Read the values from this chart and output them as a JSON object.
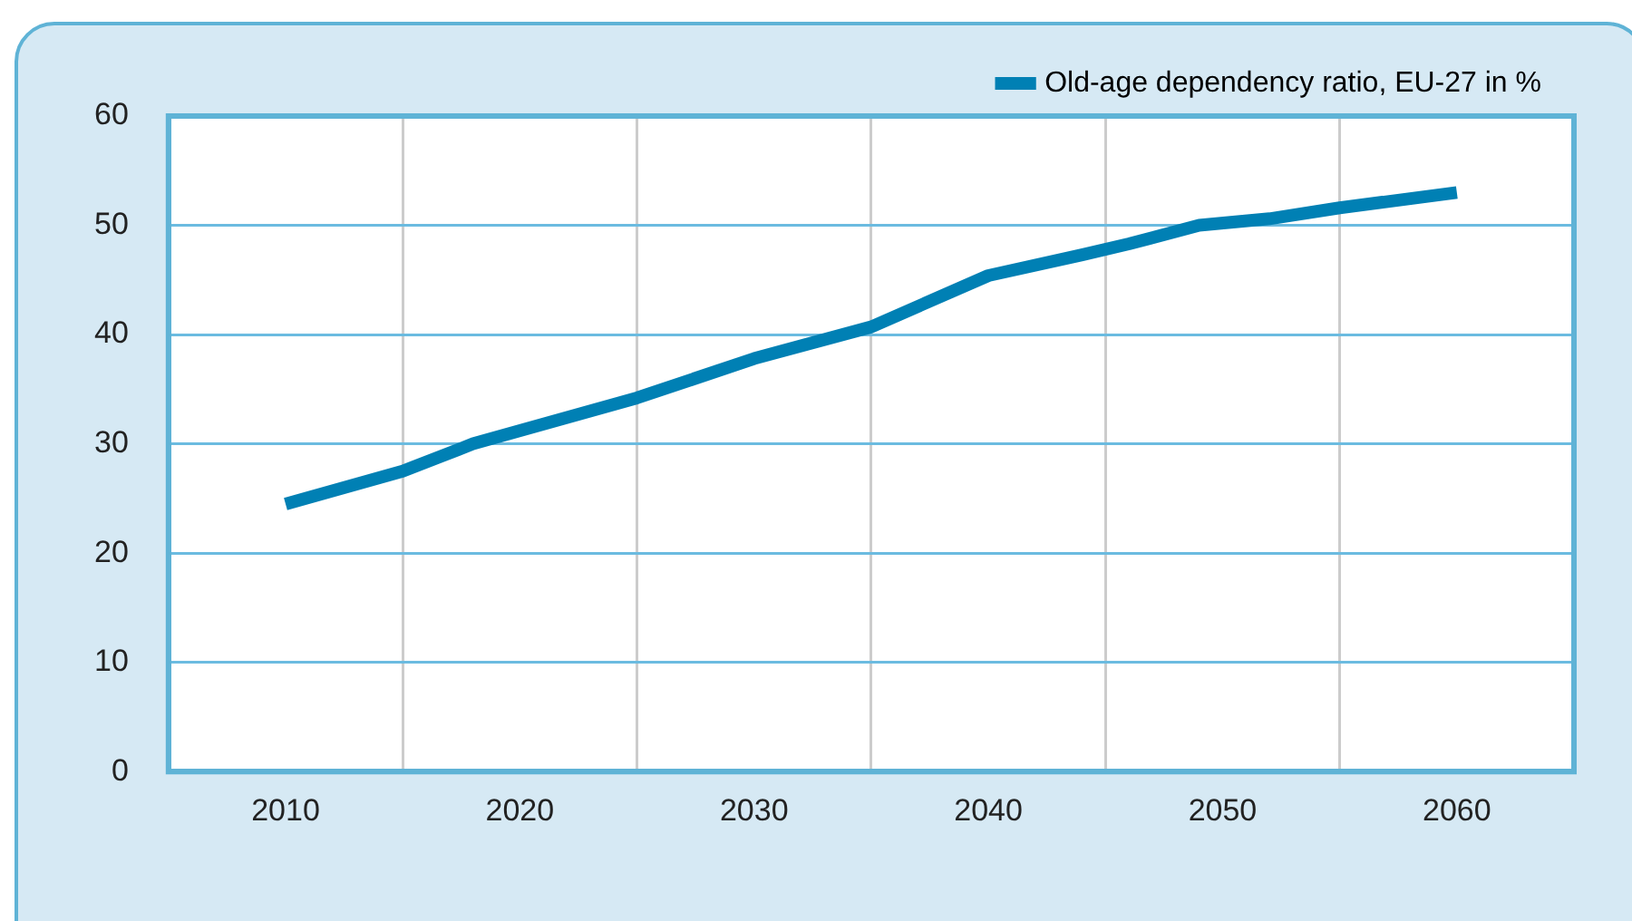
{
  "chart_data": {
    "type": "line",
    "series": [
      {
        "name": "Old-age dependency ratio, EU-27 in %",
        "color": "#0080b4",
        "x": [
          2010,
          2015,
          2018,
          2025,
          2030,
          2035,
          2040,
          2044,
          2046,
          2049,
          2052,
          2055,
          2060
        ],
        "values": [
          24.5,
          27.5,
          30.0,
          34.2,
          37.8,
          40.7,
          45.4,
          47.3,
          48.3,
          50.0,
          50.6,
          51.6,
          53.0
        ]
      }
    ],
    "xlim": [
      2005,
      2065
    ],
    "xticks": [
      2010,
      {
        "value": 2015,
        "label": null
      },
      2020,
      {
        "value": 2025,
        "label": null
      },
      2030,
      {
        "value": 2035,
        "label": null
      },
      2040,
      {
        "value": 2045,
        "label": null
      },
      2050,
      {
        "value": 2055,
        "label": null
      },
      2060
    ],
    "ylim": [
      0,
      60
    ],
    "yticks": [
      0,
      10,
      20,
      30,
      40,
      50,
      60
    ],
    "grid": true,
    "legend": "top right",
    "marker": "none",
    "line_style": "solid"
  }
}
